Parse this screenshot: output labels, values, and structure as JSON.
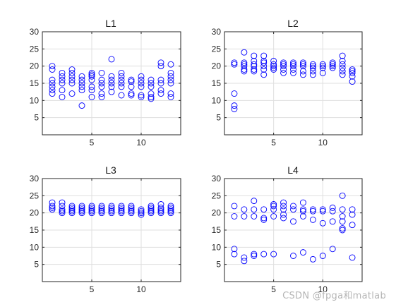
{
  "watermark": "CSDN @fpga和matlab",
  "chart_data": [
    {
      "type": "scatter",
      "title": "L1",
      "xlim": [
        0,
        14
      ],
      "ylim": [
        0,
        30
      ],
      "xticks": [
        5,
        10
      ],
      "yticks": [
        5,
        10,
        15,
        20,
        25,
        30
      ],
      "grid": true,
      "marker": "circle-open",
      "color": "#0000ff",
      "x": [
        1,
        1,
        1,
        1,
        1,
        1,
        1,
        2,
        2,
        2,
        2,
        2,
        2,
        3,
        3,
        3,
        3,
        3,
        3,
        4,
        4,
        4,
        4,
        4,
        4,
        5,
        5,
        5,
        5,
        5,
        5,
        5,
        6,
        6,
        6,
        6,
        6,
        6,
        7,
        7,
        7,
        7,
        7,
        7,
        8,
        8,
        8,
        8,
        8,
        8,
        9,
        9,
        9,
        9,
        9,
        10,
        10,
        10,
        10,
        10,
        10,
        11,
        11,
        11,
        11,
        11,
        11,
        12,
        12,
        12,
        12,
        12,
        12,
        13,
        13,
        13,
        13,
        13,
        13,
        13
      ],
      "y": [
        20,
        19,
        16,
        15,
        14,
        13,
        12,
        18,
        17,
        16,
        15,
        13,
        11,
        19,
        18,
        17,
        16,
        15,
        12,
        17,
        16,
        15,
        14,
        13,
        8.5,
        18,
        17.5,
        17,
        16,
        14,
        13,
        11,
        18,
        16,
        15,
        14,
        12,
        11,
        22,
        17,
        16,
        15,
        14,
        12.5,
        18,
        17,
        16,
        15,
        14,
        11.5,
        16,
        15.5,
        14,
        12,
        11.5,
        17,
        16,
        15,
        14,
        11.5,
        11,
        16,
        15,
        14,
        12,
        11,
        10.5,
        21,
        20,
        16,
        15,
        13,
        12,
        20.5,
        18,
        17,
        16,
        15,
        12,
        11
      ]
    },
    {
      "type": "scatter",
      "title": "L2",
      "xlim": [
        0,
        14
      ],
      "ylim": [
        0,
        30
      ],
      "xticks": [
        5,
        10
      ],
      "yticks": [
        5,
        10,
        15,
        20,
        25,
        30
      ],
      "grid": true,
      "marker": "circle-open",
      "color": "#0000ff",
      "x": [
        1,
        1,
        1,
        1,
        1,
        2,
        2,
        2,
        2,
        2,
        2,
        3,
        3,
        3,
        3,
        3,
        3,
        4,
        4,
        4,
        4,
        4,
        4,
        5,
        5,
        5,
        5,
        5,
        6,
        6,
        6,
        6,
        6,
        7,
        7,
        7,
        7,
        7,
        8,
        8,
        8,
        8,
        8,
        9,
        9,
        9,
        9,
        9,
        10,
        10,
        10,
        10,
        11,
        11,
        11,
        11,
        12,
        12,
        12,
        12,
        12,
        12,
        13,
        13,
        13,
        13,
        13
      ],
      "y": [
        21,
        20.5,
        12,
        8.5,
        7.5,
        24,
        21,
        20.5,
        20,
        19,
        18.5,
        23,
        21.5,
        20.5,
        20,
        19,
        18.5,
        23,
        21.5,
        21,
        20,
        19,
        17.5,
        21.5,
        20.5,
        20,
        19.5,
        19,
        21,
        20.5,
        20,
        19,
        18,
        21,
        20.5,
        20,
        19,
        18,
        21,
        20.5,
        20,
        18.5,
        17.5,
        20.5,
        20,
        19.5,
        18.5,
        17.5,
        20.5,
        20,
        19.5,
        18,
        21,
        20.5,
        20,
        19.5,
        23,
        21.5,
        20.5,
        19.5,
        18.5,
        17.5,
        19,
        18.5,
        18,
        17,
        15.5
      ]
    },
    {
      "type": "scatter",
      "title": "L3",
      "xlim": [
        0,
        14
      ],
      "ylim": [
        0,
        30
      ],
      "xticks": [
        5,
        10
      ],
      "yticks": [
        5,
        10,
        15,
        20,
        25,
        30
      ],
      "grid": true,
      "marker": "circle-open",
      "color": "#0000ff",
      "x": [
        1,
        1,
        1,
        1,
        2,
        2,
        2,
        2,
        2,
        3,
        3,
        3,
        3,
        3,
        4,
        4,
        4,
        4,
        4,
        5,
        5,
        5,
        5,
        5,
        6,
        6,
        6,
        6,
        6,
        7,
        7,
        7,
        7,
        7,
        8,
        8,
        8,
        8,
        8,
        9,
        9,
        9,
        9,
        9,
        10,
        10,
        10,
        10,
        11,
        11,
        11,
        11,
        11,
        12,
        12,
        12,
        12,
        12,
        13,
        13,
        13,
        13,
        13
      ],
      "y": [
        23,
        22,
        21.5,
        21,
        23,
        22,
        21,
        20.5,
        20,
        22,
        21.5,
        21,
        20.5,
        20,
        22,
        21.5,
        21,
        20.5,
        20,
        22,
        21.5,
        21,
        20.5,
        20,
        22,
        21.5,
        21,
        20.5,
        20,
        22,
        21.5,
        21,
        20.5,
        20,
        22,
        21.5,
        21,
        20.5,
        20,
        22,
        21.5,
        21,
        20.5,
        20,
        21,
        20.5,
        20,
        19.5,
        22,
        21.5,
        21,
        20.5,
        20,
        22.5,
        21.5,
        21,
        20.5,
        20,
        22,
        21.5,
        21,
        20.5,
        20
      ]
    },
    {
      "type": "scatter",
      "title": "L4",
      "xlim": [
        0,
        14
      ],
      "ylim": [
        0,
        30
      ],
      "xticks": [
        5,
        10
      ],
      "yticks": [
        5,
        10,
        15,
        20,
        25,
        30
      ],
      "grid": true,
      "marker": "circle-open",
      "color": "#0000ff",
      "x": [
        1,
        1,
        1,
        1,
        2,
        2,
        2,
        2,
        3,
        3,
        3,
        3,
        3,
        4,
        4,
        4,
        4,
        5,
        5,
        5,
        5,
        5,
        6,
        6,
        6,
        6,
        6,
        7,
        7,
        7,
        7,
        8,
        8,
        8,
        8,
        8,
        9,
        9,
        9,
        9,
        10,
        10,
        10,
        10,
        11,
        11,
        11,
        11,
        12,
        12,
        12,
        12,
        12,
        12,
        13,
        13,
        13,
        13
      ],
      "y": [
        22,
        19,
        9.5,
        8,
        21,
        19,
        7,
        6,
        23.5,
        21,
        19,
        8,
        7.5,
        21,
        18.5,
        18,
        8,
        22.5,
        22,
        21,
        19,
        8,
        23,
        22,
        21,
        19.5,
        18.5,
        22,
        21,
        17.5,
        7.5,
        23,
        21,
        20.5,
        19,
        8.5,
        21,
        20.5,
        18,
        6.5,
        21,
        20.5,
        17,
        7.5,
        21.5,
        20.5,
        17.5,
        9.5,
        25,
        21,
        19,
        17.5,
        15.5,
        15,
        21,
        19.5,
        16.5,
        7
      ]
    }
  ]
}
